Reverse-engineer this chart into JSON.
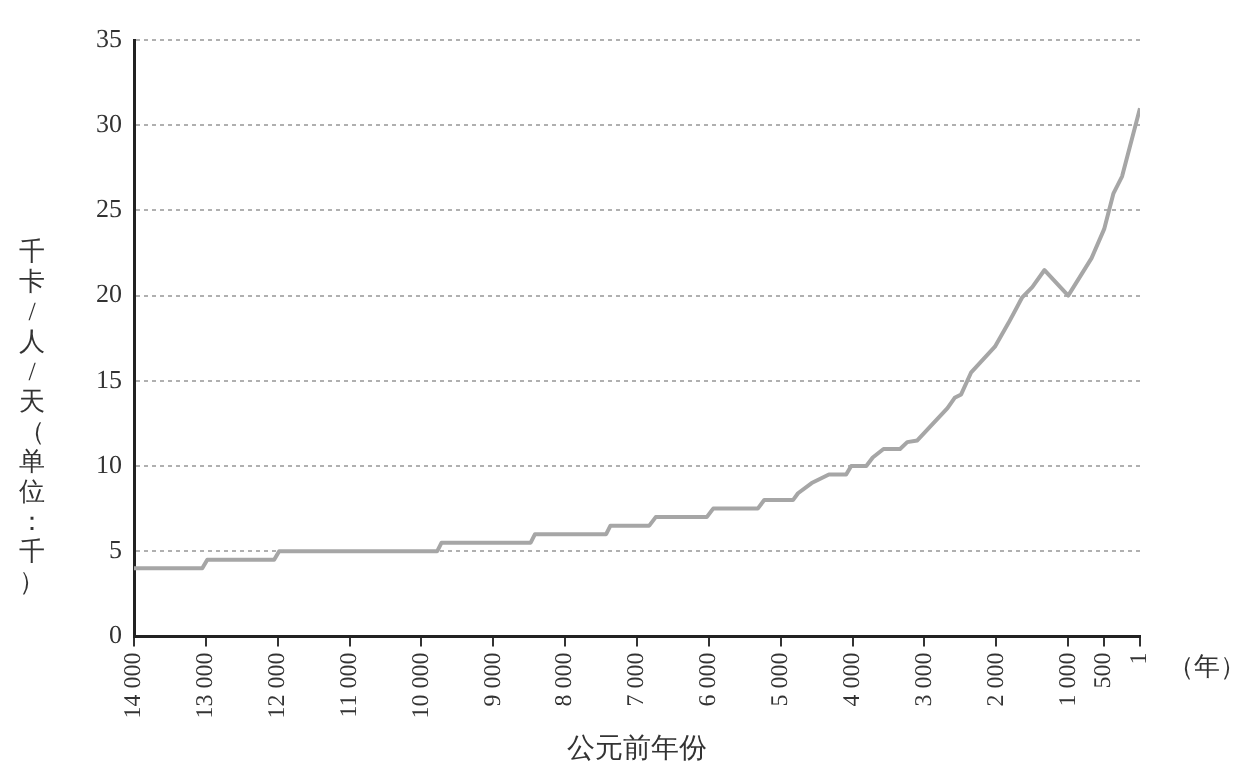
{
  "chart_data": {
    "type": "line",
    "xlabel": "公元前年份",
    "ylabel": "千卡/人/天（单位：千）",
    "annotations": [
      "（年）"
    ],
    "x": [
      14000,
      13050,
      12980,
      12050,
      11980,
      9780,
      9720,
      8480,
      8420,
      7430,
      7370,
      6830,
      6740,
      6030,
      5940,
      5320,
      5230,
      4830,
      4760,
      4570,
      4330,
      4090,
      4020,
      3810,
      3720,
      3570,
      3340,
      3240,
      3100,
      2680,
      2580,
      2490,
      2350,
      2020,
      1830,
      1640,
      1500,
      1330,
      1000,
      675,
      500,
      370,
      250,
      1
    ],
    "series": [
      {
        "color": "#a6a6a6",
        "values": [
          4,
          4,
          4.5,
          4.5,
          5,
          5,
          5.5,
          5.5,
          6,
          6,
          6.5,
          6.5,
          7,
          7,
          7.5,
          7.5,
          8,
          8,
          8.4,
          9,
          9.5,
          9.5,
          10,
          10,
          10.5,
          11,
          11,
          11.4,
          11.5,
          13.4,
          14,
          14.2,
          15.5,
          17,
          18.4,
          19.9,
          20.5,
          21.5,
          20,
          22.2,
          23.9,
          26,
          27,
          31
        ]
      }
    ],
    "xlim": [
      14000,
      1
    ],
    "xticks": [
      {
        "value": 14000,
        "label": "14 000"
      },
      {
        "value": 13000,
        "label": "13 000"
      },
      {
        "value": 12000,
        "label": "12 000"
      },
      {
        "value": 11000,
        "label": "11 000"
      },
      {
        "value": 10000,
        "label": "10 000"
      },
      {
        "value": 9000,
        "label": "9 000"
      },
      {
        "value": 8000,
        "label": "8 000"
      },
      {
        "value": 7000,
        "label": "7 000"
      },
      {
        "value": 6000,
        "label": "6 000"
      },
      {
        "value": 5000,
        "label": "5 000"
      },
      {
        "value": 4000,
        "label": "4 000"
      },
      {
        "value": 3000,
        "label": "3 000"
      },
      {
        "value": 2000,
        "label": "2 000"
      },
      {
        "value": 1000,
        "label": "1 000"
      },
      {
        "value": 500,
        "label": "500"
      },
      {
        "value": 1,
        "label": "1"
      }
    ],
    "ylim": [
      0,
      35
    ],
    "yticks": [
      0,
      5,
      10,
      15,
      20,
      25,
      30,
      35
    ],
    "grid": "y",
    "marker": "none",
    "line_style": "solid",
    "legend": false
  }
}
